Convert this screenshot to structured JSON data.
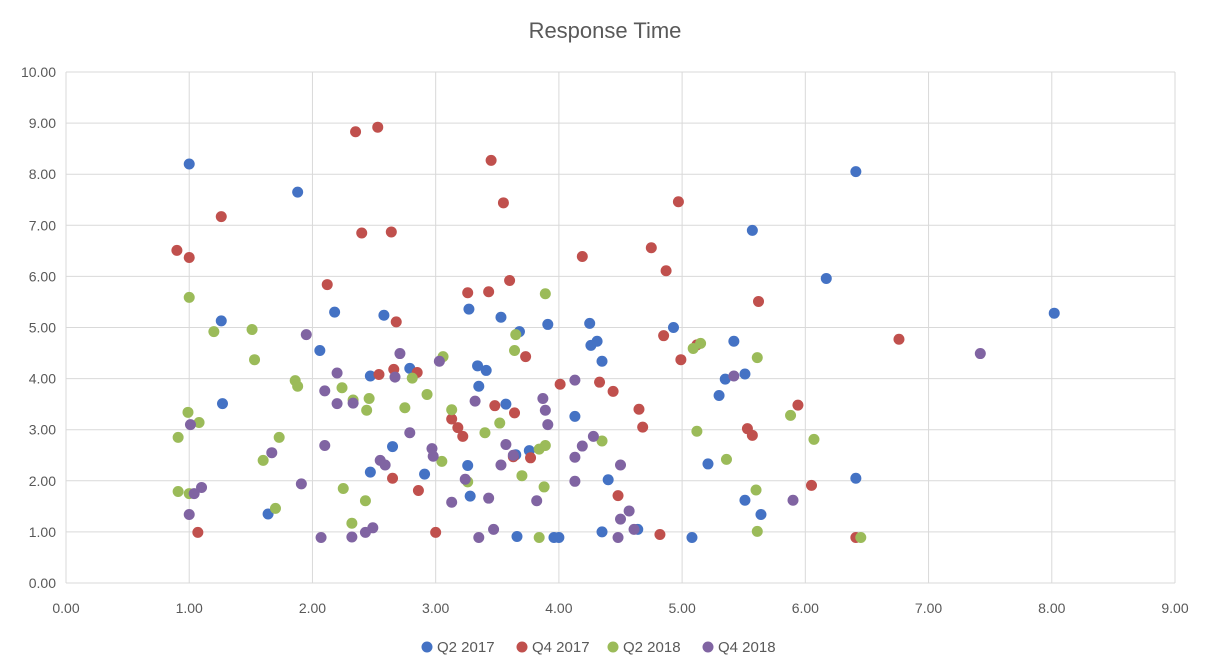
{
  "chart_data": {
    "type": "scatter",
    "title": "Response Time",
    "xlabel": "",
    "ylabel": "",
    "xlim": [
      0,
      9
    ],
    "ylim": [
      0,
      10
    ],
    "x_ticks": [
      "0.00",
      "1.00",
      "2.00",
      "3.00",
      "4.00",
      "5.00",
      "6.00",
      "7.00",
      "8.00",
      "9.00"
    ],
    "y_ticks": [
      "0.00",
      "1.00",
      "2.00",
      "3.00",
      "4.00",
      "5.00",
      "6.00",
      "7.00",
      "8.00",
      "9.00",
      "10.00"
    ],
    "grid": true,
    "legend_position": "bottom",
    "series": [
      {
        "name": "Q2 2017",
        "color": "#4472c4",
        "points": [
          [
            1.0,
            8.2
          ],
          [
            1.88,
            7.65
          ],
          [
            6.41,
            8.05
          ],
          [
            5.57,
            6.9
          ],
          [
            6.17,
            5.96
          ],
          [
            8.02,
            5.28
          ],
          [
            1.26,
            5.13
          ],
          [
            2.18,
            5.3
          ],
          [
            2.58,
            5.24
          ],
          [
            3.27,
            5.36
          ],
          [
            3.53,
            5.2
          ],
          [
            3.68,
            4.92
          ],
          [
            3.91,
            5.06
          ],
          [
            4.25,
            5.08
          ],
          [
            4.26,
            4.65
          ],
          [
            4.31,
            4.73
          ],
          [
            4.35,
            4.34
          ],
          [
            4.93,
            5.0
          ],
          [
            5.42,
            4.73
          ],
          [
            2.06,
            4.55
          ],
          [
            2.47,
            4.05
          ],
          [
            2.79,
            4.2
          ],
          [
            3.34,
            4.25
          ],
          [
            3.41,
            4.16
          ],
          [
            3.35,
            3.85
          ],
          [
            5.35,
            3.99
          ],
          [
            5.51,
            4.09
          ],
          [
            1.27,
            3.51
          ],
          [
            3.57,
            3.5
          ],
          [
            4.13,
            3.26
          ],
          [
            5.3,
            3.67
          ],
          [
            2.65,
            2.67
          ],
          [
            3.65,
            2.51
          ],
          [
            3.76,
            2.59
          ],
          [
            2.47,
            2.17
          ],
          [
            2.91,
            2.13
          ],
          [
            3.26,
            2.3
          ],
          [
            4.4,
            2.02
          ],
          [
            5.21,
            2.33
          ],
          [
            6.41,
            2.05
          ],
          [
            1.64,
            1.35
          ],
          [
            3.28,
            1.7
          ],
          [
            5.51,
            1.62
          ],
          [
            5.64,
            1.34
          ],
          [
            3.66,
            0.91
          ],
          [
            3.96,
            0.89
          ],
          [
            4.0,
            0.89
          ],
          [
            4.35,
            1.0
          ],
          [
            4.64,
            1.05
          ],
          [
            5.08,
            0.89
          ]
        ]
      },
      {
        "name": "Q4 2017",
        "color": "#c0504d",
        "points": [
          [
            2.35,
            8.83
          ],
          [
            2.53,
            8.92
          ],
          [
            3.45,
            8.27
          ],
          [
            1.26,
            7.17
          ],
          [
            3.55,
            7.44
          ],
          [
            4.97,
            7.46
          ],
          [
            2.4,
            6.85
          ],
          [
            2.64,
            6.87
          ],
          [
            0.9,
            6.51
          ],
          [
            1.0,
            6.37
          ],
          [
            4.19,
            6.39
          ],
          [
            4.75,
            6.56
          ],
          [
            4.87,
            6.11
          ],
          [
            3.6,
            5.92
          ],
          [
            2.12,
            5.84
          ],
          [
            3.26,
            5.68
          ],
          [
            3.43,
            5.7
          ],
          [
            5.62,
            5.51
          ],
          [
            2.68,
            5.11
          ],
          [
            4.85,
            4.84
          ],
          [
            6.76,
            4.77
          ],
          [
            5.12,
            4.66
          ],
          [
            4.99,
            4.37
          ],
          [
            3.73,
            4.43
          ],
          [
            2.54,
            4.08
          ],
          [
            2.66,
            4.18
          ],
          [
            2.85,
            4.12
          ],
          [
            4.01,
            3.89
          ],
          [
            4.33,
            3.93
          ],
          [
            4.44,
            3.75
          ],
          [
            3.48,
            3.47
          ],
          [
            3.64,
            3.33
          ],
          [
            4.65,
            3.4
          ],
          [
            5.94,
            3.48
          ],
          [
            3.13,
            3.21
          ],
          [
            3.18,
            3.04
          ],
          [
            3.22,
            2.87
          ],
          [
            4.68,
            3.05
          ],
          [
            5.53,
            3.02
          ],
          [
            5.57,
            2.89
          ],
          [
            3.63,
            2.47
          ],
          [
            3.77,
            2.45
          ],
          [
            2.65,
            2.05
          ],
          [
            2.86,
            1.81
          ],
          [
            4.48,
            1.71
          ],
          [
            6.05,
            1.91
          ],
          [
            1.07,
            0.99
          ],
          [
            3.0,
            0.99
          ],
          [
            4.82,
            0.95
          ],
          [
            6.41,
            0.89
          ]
        ]
      },
      {
        "name": "Q2 2018",
        "color": "#9bbb59",
        "points": [
          [
            1.0,
            5.59
          ],
          [
            3.89,
            5.66
          ],
          [
            1.2,
            4.92
          ],
          [
            1.51,
            4.96
          ],
          [
            1.53,
            4.37
          ],
          [
            3.65,
            4.86
          ],
          [
            3.64,
            4.55
          ],
          [
            3.06,
            4.43
          ],
          [
            5.09,
            4.59
          ],
          [
            5.15,
            4.69
          ],
          [
            5.61,
            4.41
          ],
          [
            1.86,
            3.96
          ],
          [
            1.88,
            3.85
          ],
          [
            2.24,
            3.82
          ],
          [
            2.33,
            3.58
          ],
          [
            2.44,
            3.38
          ],
          [
            2.46,
            3.61
          ],
          [
            2.75,
            3.43
          ],
          [
            2.81,
            4.01
          ],
          [
            2.93,
            3.69
          ],
          [
            3.13,
            3.39
          ],
          [
            0.99,
            3.34
          ],
          [
            1.08,
            3.14
          ],
          [
            0.91,
            2.85
          ],
          [
            1.73,
            2.85
          ],
          [
            3.4,
            2.94
          ],
          [
            3.52,
            3.13
          ],
          [
            4.35,
            2.78
          ],
          [
            5.12,
            2.97
          ],
          [
            5.88,
            3.28
          ],
          [
            6.07,
            2.81
          ],
          [
            1.6,
            2.4
          ],
          [
            3.05,
            2.38
          ],
          [
            3.7,
            2.1
          ],
          [
            3.84,
            2.62
          ],
          [
            3.89,
            2.69
          ],
          [
            5.36,
            2.42
          ],
          [
            0.91,
            1.79
          ],
          [
            1.0,
            1.75
          ],
          [
            1.7,
            1.46
          ],
          [
            2.25,
            1.85
          ],
          [
            2.43,
            1.61
          ],
          [
            3.26,
            1.98
          ],
          [
            3.88,
            1.88
          ],
          [
            5.6,
            1.82
          ],
          [
            2.32,
            1.17
          ],
          [
            3.84,
            0.89
          ],
          [
            5.61,
            1.01
          ],
          [
            6.45,
            0.89
          ]
        ]
      },
      {
        "name": "Q4 2018",
        "color": "#8064a2",
        "points": [
          [
            1.95,
            4.86
          ],
          [
            2.71,
            4.49
          ],
          [
            3.03,
            4.34
          ],
          [
            2.2,
            4.11
          ],
          [
            2.67,
            4.03
          ],
          [
            2.1,
            3.76
          ],
          [
            4.13,
            3.97
          ],
          [
            5.42,
            4.05
          ],
          [
            7.42,
            4.49
          ],
          [
            2.2,
            3.51
          ],
          [
            2.33,
            3.52
          ],
          [
            3.32,
            3.56
          ],
          [
            3.87,
            3.61
          ],
          [
            3.89,
            3.38
          ],
          [
            1.01,
            3.1
          ],
          [
            3.91,
            3.1
          ],
          [
            2.1,
            2.69
          ],
          [
            2.79,
            2.94
          ],
          [
            2.97,
            2.63
          ],
          [
            3.57,
            2.71
          ],
          [
            4.28,
            2.87
          ],
          [
            1.67,
            2.55
          ],
          [
            2.98,
            2.48
          ],
          [
            3.63,
            2.5
          ],
          [
            4.13,
            2.46
          ],
          [
            4.19,
            2.68
          ],
          [
            2.55,
            2.4
          ],
          [
            2.59,
            2.31
          ],
          [
            3.53,
            2.31
          ],
          [
            4.5,
            2.31
          ],
          [
            1.1,
            1.87
          ],
          [
            1.91,
            1.94
          ],
          [
            3.24,
            2.03
          ],
          [
            4.13,
            1.99
          ],
          [
            1.04,
            1.75
          ],
          [
            3.13,
            1.58
          ],
          [
            3.43,
            1.66
          ],
          [
            3.82,
            1.61
          ],
          [
            5.9,
            1.62
          ],
          [
            1.0,
            1.34
          ],
          [
            4.5,
            1.25
          ],
          [
            4.57,
            1.41
          ],
          [
            2.49,
            1.08
          ],
          [
            3.47,
            1.05
          ],
          [
            4.61,
            1.05
          ],
          [
            2.07,
            0.89
          ],
          [
            2.32,
            0.9
          ],
          [
            2.43,
            0.99
          ],
          [
            3.35,
            0.89
          ],
          [
            4.48,
            0.89
          ]
        ]
      }
    ]
  }
}
